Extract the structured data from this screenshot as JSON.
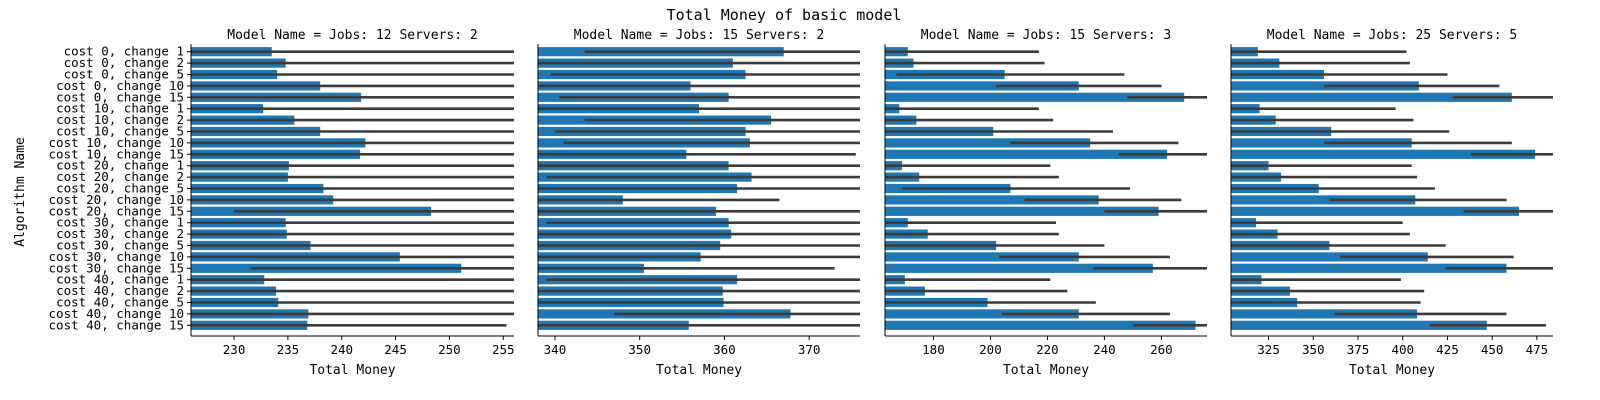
{
  "figure": {
    "title": "Total Money of basic model",
    "ylabel": "Algorithm Name"
  },
  "colors": {
    "bar": "#1f77b4",
    "errorbar": "#3b3b3b",
    "axis": "#000000"
  },
  "chart_data": [
    {
      "type": "bar",
      "orientation": "horizontal",
      "title": "Model Name = Jobs: 12 Servers: 2",
      "xlabel": "Total Money",
      "xlim": [
        226,
        256
      ],
      "xticks": [
        230,
        235,
        240,
        245,
        250,
        255
      ],
      "categories": [
        "cost 0, change 1",
        "cost 0, change 2",
        "cost 0, change 5",
        "cost 0, change 10",
        "cost 0, change 15",
        "cost 10, change 1",
        "cost 10, change 2",
        "cost 10, change 5",
        "cost 10, change 10",
        "cost 10, change 15",
        "cost 20, change 1",
        "cost 20, change 2",
        "cost 20, change 5",
        "cost 20, change 10",
        "cost 20, change 15",
        "cost 30, change 1",
        "cost 30, change 2",
        "cost 30, change 5",
        "cost 30, change 10",
        "cost 30, change 15",
        "cost 40, change 1",
        "cost 40, change 2",
        "cost 40, change 5",
        "cost 40, change 10",
        "cost 40, change 15"
      ],
      "values": [
        233.5,
        234.8,
        234.0,
        238.0,
        241.8,
        232.7,
        235.6,
        238.0,
        242.2,
        241.7,
        235.1,
        235.0,
        238.3,
        239.2,
        248.3,
        234.8,
        234.9,
        237.1,
        245.4,
        251.1,
        232.8,
        233.9,
        234.1,
        236.9,
        236.8
      ],
      "ci_low": [
        226,
        226,
        226,
        226,
        226,
        226,
        226,
        226,
        226,
        226,
        226,
        226,
        226,
        226,
        230,
        226,
        226,
        226,
        226,
        231.5,
        226,
        226,
        226,
        226,
        226
      ],
      "ci_high": [
        256,
        256,
        256,
        256,
        256,
        256,
        256,
        256,
        256,
        256,
        256,
        256,
        256,
        256,
        256,
        256,
        256,
        256,
        256,
        256,
        256,
        256,
        256,
        256,
        255.3
      ]
    },
    {
      "type": "bar",
      "orientation": "horizontal",
      "title": "Model Name = Jobs: 15 Servers: 2",
      "xlabel": "Total Money",
      "xlim": [
        338,
        376
      ],
      "xticks": [
        340,
        350,
        360,
        370
      ],
      "categories": [
        "cost 0, change 1",
        "cost 0, change 2",
        "cost 0, change 5",
        "cost 0, change 10",
        "cost 0, change 15",
        "cost 10, change 1",
        "cost 10, change 2",
        "cost 10, change 5",
        "cost 10, change 10",
        "cost 10, change 15",
        "cost 20, change 1",
        "cost 20, change 2",
        "cost 20, change 5",
        "cost 20, change 10",
        "cost 20, change 15",
        "cost 30, change 1",
        "cost 30, change 2",
        "cost 30, change 5",
        "cost 30, change 10",
        "cost 30, change 15",
        "cost 40, change 1",
        "cost 40, change 2",
        "cost 40, change 5",
        "cost 40, change 10",
        "cost 40, change 15"
      ],
      "values": [
        367.0,
        361.0,
        362.5,
        356.0,
        360.5,
        357.0,
        365.5,
        362.5,
        363.0,
        355.5,
        360.5,
        363.2,
        361.5,
        348.0,
        359.0,
        360.5,
        360.8,
        359.5,
        357.2,
        350.5,
        361.5,
        359.8,
        359.9,
        367.8,
        355.8
      ],
      "ci_low": [
        343.5,
        338,
        339.5,
        338,
        340.5,
        338,
        343.5,
        340,
        341,
        338,
        338,
        339,
        338,
        338,
        338,
        339,
        338,
        338,
        338,
        338,
        339,
        338,
        338,
        347,
        338
      ],
      "ci_high": [
        376,
        376,
        376,
        376,
        376,
        376,
        376,
        376,
        376,
        375.5,
        376,
        376,
        376,
        366.5,
        376,
        376,
        376,
        376,
        376,
        373,
        376,
        376,
        376,
        376,
        376
      ]
    },
    {
      "type": "bar",
      "orientation": "horizontal",
      "title": "Model Name = Jobs: 15 Servers: 3",
      "xlabel": "Total Money",
      "xlim": [
        163,
        276
      ],
      "xticks": [
        180,
        200,
        220,
        240,
        260
      ],
      "categories": [
        "cost 0, change 1",
        "cost 0, change 2",
        "cost 0, change 5",
        "cost 0, change 10",
        "cost 0, change 15",
        "cost 10, change 1",
        "cost 10, change 2",
        "cost 10, change 5",
        "cost 10, change 10",
        "cost 10, change 15",
        "cost 20, change 1",
        "cost 20, change 2",
        "cost 20, change 5",
        "cost 20, change 10",
        "cost 20, change 15",
        "cost 30, change 1",
        "cost 30, change 2",
        "cost 30, change 5",
        "cost 30, change 10",
        "cost 30, change 15",
        "cost 40, change 1",
        "cost 40, change 2",
        "cost 40, change 5",
        "cost 40, change 10",
        "cost 40, change 15"
      ],
      "values": [
        171,
        173,
        205,
        231,
        268,
        168,
        174,
        201,
        235,
        262,
        169,
        175,
        207,
        238,
        259,
        171,
        178,
        202,
        231,
        257,
        170,
        177,
        199,
        231,
        272
      ],
      "ci_low": [
        163,
        163,
        167,
        202,
        248,
        163,
        163,
        163,
        207,
        245,
        163,
        163,
        169,
        212,
        240,
        163,
        163,
        163,
        203,
        236,
        163,
        163,
        163,
        204,
        250
      ],
      "ci_high": [
        217,
        219,
        247,
        260,
        276,
        217,
        222,
        243,
        266,
        276,
        221,
        224,
        249,
        267,
        276,
        223,
        224,
        240,
        263,
        276,
        221,
        227,
        237,
        263,
        276
      ]
    },
    {
      "type": "bar",
      "orientation": "horizontal",
      "title": "Model Name = Jobs: 25 Servers: 5",
      "xlabel": "Total Money",
      "xlim": [
        304,
        484
      ],
      "xticks": [
        325,
        350,
        375,
        400,
        425,
        450,
        475
      ],
      "categories": [
        "cost 0, change 1",
        "cost 0, change 2",
        "cost 0, change 5",
        "cost 0, change 10",
        "cost 0, change 15",
        "cost 10, change 1",
        "cost 10, change 2",
        "cost 10, change 5",
        "cost 10, change 10",
        "cost 10, change 15",
        "cost 20, change 1",
        "cost 20, change 2",
        "cost 20, change 5",
        "cost 20, change 10",
        "cost 20, change 15",
        "cost 30, change 1",
        "cost 30, change 2",
        "cost 30, change 5",
        "cost 30, change 10",
        "cost 30, change 15",
        "cost 40, change 1",
        "cost 40, change 2",
        "cost 40, change 5",
        "cost 40, change 10",
        "cost 40, change 15"
      ],
      "values": [
        319,
        331,
        356,
        409,
        461,
        320,
        329,
        360,
        405,
        474,
        325,
        332,
        353,
        407,
        465,
        318,
        330,
        359,
        414,
        458,
        321,
        337,
        341,
        408,
        447
      ],
      "ci_low": [
        304,
        304,
        304,
        356,
        428,
        304,
        304,
        304,
        356,
        438,
        304,
        304,
        304,
        359,
        434,
        304,
        304,
        304,
        365,
        424,
        304,
        304,
        304,
        362,
        415
      ],
      "ci_high": [
        402,
        404,
        425,
        454,
        484,
        396,
        406,
        426,
        461,
        484,
        405,
        408,
        418,
        458,
        484,
        400,
        404,
        424,
        462,
        484,
        399,
        412,
        410,
        458,
        480
      ]
    }
  ]
}
